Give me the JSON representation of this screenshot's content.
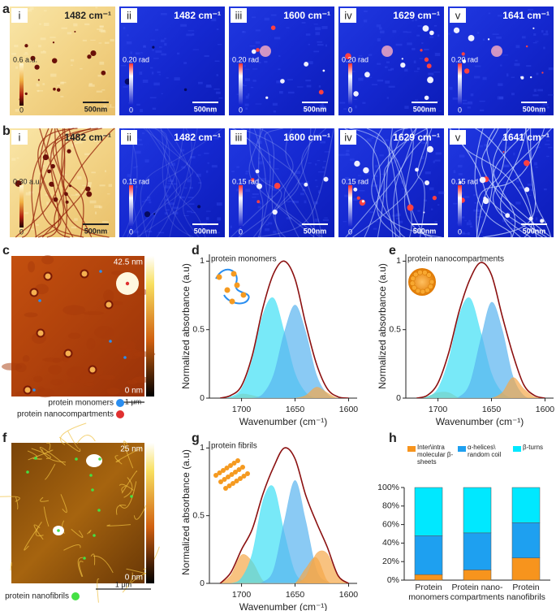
{
  "panel_letters": [
    "a",
    "b",
    "c",
    "d",
    "e",
    "f",
    "g",
    "h"
  ],
  "row_a": [
    {
      "numeral": "i",
      "wavenumber": "1482 cm⁻¹",
      "scale_max": "0.6 a.u.",
      "scale_min": "0",
      "scale_bar": "500nm"
    },
    {
      "numeral": "ii",
      "wavenumber": "1482 cm⁻¹",
      "scale_max": "0.20 rad",
      "scale_min": "0",
      "scale_bar": "500nm"
    },
    {
      "numeral": "iii",
      "wavenumber": "1600 cm⁻¹",
      "scale_max": "0.20 rad",
      "scale_min": "0",
      "scale_bar": "500nm"
    },
    {
      "numeral": "iv",
      "wavenumber": "1629 cm⁻¹",
      "scale_max": "0.20 rad",
      "scale_min": "0",
      "scale_bar": "500nm"
    },
    {
      "numeral": "v",
      "wavenumber": "1641 cm⁻¹",
      "scale_max": "0.20 rad",
      "scale_min": "0",
      "scale_bar": "500nm"
    }
  ],
  "row_b": [
    {
      "numeral": "i",
      "wavenumber": "1482 cm⁻¹",
      "scale_max": "0.30 a.u.",
      "scale_min": "0",
      "scale_bar": "500nm"
    },
    {
      "numeral": "ii",
      "wavenumber": "1482 cm⁻¹",
      "scale_max": "0.15 rad",
      "scale_min": "0",
      "scale_bar": "500nm"
    },
    {
      "numeral": "iii",
      "wavenumber": "1600 cm⁻¹",
      "scale_max": "0.15 rad",
      "scale_min": "0",
      "scale_bar": "500nm"
    },
    {
      "numeral": "iv",
      "wavenumber": "1629 cm⁻¹",
      "scale_max": "0.15 rad",
      "scale_min": "0",
      "scale_bar": "500nm"
    },
    {
      "numeral": "v",
      "wavenumber": "1641 cm⁻¹",
      "scale_max": "0.15 rad",
      "scale_min": "0",
      "scale_bar": "500nm"
    }
  ],
  "map_c": {
    "scale_max": "42.5 nm",
    "scale_min": "0 nm",
    "scale_bar": "1 μm",
    "legend": [
      {
        "label": "protein monomers",
        "color": "#2a8ef0"
      },
      {
        "label": "protein nanocompartments",
        "color": "#e03030"
      }
    ]
  },
  "map_f": {
    "scale_max": "25 nm",
    "scale_min": "0 nm",
    "scale_bar": "1 μm",
    "legend": [
      {
        "label": "protein nanofibrils",
        "color": "#44e044"
      }
    ]
  },
  "chart_data": [
    {
      "type": "area",
      "annotation": "protein monomers",
      "xlabel": "Wavenumber (cm⁻¹)",
      "ylabel": "Normalized absorbance (a.u)",
      "x": [
        1720,
        1710,
        1700,
        1690,
        1680,
        1670,
        1660,
        1650,
        1640,
        1630,
        1620,
        1610,
        1600
      ],
      "xlim": [
        1730,
        1592
      ],
      "ylim": [
        0,
        1.05
      ],
      "xticks": [
        1700,
        1650,
        1600
      ],
      "yticks": [
        0,
        0.5,
        1
      ],
      "series": [
        {
          "color": "#f3b866",
          "filled": true,
          "values": [
            0,
            0,
            0.03,
            0.02,
            0,
            0,
            0,
            0,
            0,
            0,
            0,
            0,
            0
          ]
        },
        {
          "color": "#3fe0f5",
          "filled": true,
          "values": [
            0,
            0.01,
            0.07,
            0.28,
            0.61,
            0.73,
            0.48,
            0.18,
            0.04,
            0,
            0,
            0,
            0
          ]
        },
        {
          "color": "#58b4f0",
          "filled": true,
          "values": [
            0,
            0,
            0,
            0,
            0.03,
            0.17,
            0.48,
            0.68,
            0.48,
            0.17,
            0.03,
            0,
            0
          ]
        },
        {
          "color": "#f5a84a",
          "filled": true,
          "values": [
            0,
            0,
            0,
            0,
            0,
            0,
            0,
            0,
            0.02,
            0.08,
            0.04,
            0,
            0
          ]
        },
        {
          "color": "#8b1010",
          "filled": false,
          "values": [
            0,
            0.02,
            0.09,
            0.31,
            0.66,
            0.91,
            1.0,
            0.87,
            0.54,
            0.25,
            0.07,
            0.01,
            0
          ]
        }
      ]
    },
    {
      "type": "area",
      "annotation": "protein nanocompartments",
      "xlabel": "Wavenumber (cm⁻¹)",
      "ylabel": "Normalized absorbance (a.u)",
      "x": [
        1720,
        1710,
        1700,
        1690,
        1680,
        1670,
        1660,
        1650,
        1640,
        1630,
        1620,
        1610,
        1600
      ],
      "xlim": [
        1730,
        1592
      ],
      "ylim": [
        0,
        1.05
      ],
      "xticks": [
        1700,
        1650,
        1600
      ],
      "yticks": [
        0,
        0.5,
        1
      ],
      "series": [
        {
          "color": "#f3b866",
          "filled": true,
          "values": [
            0,
            0.01,
            0.04,
            0.04,
            0,
            0,
            0,
            0,
            0,
            0,
            0,
            0,
            0
          ]
        },
        {
          "color": "#3fe0f5",
          "filled": true,
          "values": [
            0,
            0.01,
            0.07,
            0.28,
            0.61,
            0.73,
            0.48,
            0.18,
            0.04,
            0,
            0,
            0,
            0
          ]
        },
        {
          "color": "#58b4f0",
          "filled": true,
          "values": [
            0,
            0,
            0,
            0,
            0.01,
            0.11,
            0.43,
            0.7,
            0.5,
            0.16,
            0.02,
            0,
            0
          ]
        },
        {
          "color": "#f5a84a",
          "filled": true,
          "values": [
            0,
            0,
            0,
            0,
            0,
            0,
            0,
            0,
            0.04,
            0.15,
            0.07,
            0.01,
            0
          ]
        },
        {
          "color": "#8b1010",
          "filled": false,
          "values": [
            0,
            0.02,
            0.11,
            0.33,
            0.64,
            0.87,
            0.99,
            0.9,
            0.6,
            0.32,
            0.1,
            0.02,
            0
          ]
        }
      ]
    },
    {
      "type": "area",
      "annotation": "protein fibrils",
      "xlabel": "Wavenumber (cm⁻¹)",
      "ylabel": "Normalized absorbance (a.u)",
      "x": [
        1720,
        1710,
        1700,
        1690,
        1680,
        1670,
        1660,
        1650,
        1640,
        1630,
        1620,
        1610,
        1600
      ],
      "xlim": [
        1730,
        1592
      ],
      "ylim": [
        0,
        1.05
      ],
      "xticks": [
        1700,
        1650,
        1600
      ],
      "yticks": [
        0,
        0.5,
        1
      ],
      "series": [
        {
          "color": "#f5a84a",
          "filled": true,
          "values": [
            0,
            0.06,
            0.21,
            0.16,
            0.02,
            0,
            0,
            0,
            0,
            0,
            0,
            0,
            0
          ]
        },
        {
          "color": "#3fe0f5",
          "filled": true,
          "values": [
            0,
            0,
            0.04,
            0.22,
            0.61,
            0.71,
            0.37,
            0.08,
            0.01,
            0,
            0,
            0,
            0
          ]
        },
        {
          "color": "#58b4f0",
          "filled": true,
          "values": [
            0,
            0,
            0,
            0,
            0.01,
            0.1,
            0.46,
            0.76,
            0.46,
            0.1,
            0.01,
            0,
            0
          ]
        },
        {
          "color": "#f5a84a",
          "filled": true,
          "values": [
            0,
            0,
            0,
            0,
            0,
            0,
            0,
            0,
            0.11,
            0.19,
            0.02,
            0,
            0
          ]
        },
        {
          "color": "#f5a84a",
          "filled": true,
          "values": [
            0,
            0,
            0,
            0,
            0,
            0,
            0,
            0,
            0.05,
            0.22,
            0.22,
            0.05,
            0
          ]
        },
        {
          "color": "#8b1010",
          "filled": false,
          "values": [
            0,
            0.08,
            0.25,
            0.4,
            0.66,
            0.86,
            1.0,
            0.92,
            0.65,
            0.45,
            0.27,
            0.06,
            0
          ]
        }
      ]
    },
    {
      "type": "stacked_bar",
      "categories": [
        "Protein monomers",
        "Protein nano-compartments",
        "Protein nanofibrils"
      ],
      "ylim": [
        0,
        100
      ],
      "yticks": [
        {
          "value": 0,
          "label": "0%"
        },
        {
          "value": 20,
          "label": "20%"
        },
        {
          "value": 40,
          "label": "40%"
        },
        {
          "value": 60,
          "label": "60%"
        },
        {
          "value": 80,
          "label": "80%"
        },
        {
          "value": 100,
          "label": "100%"
        }
      ],
      "series": [
        {
          "name": "Inter\\intra molecular β-sheets",
          "color": "#f7941d",
          "values": [
            6,
            11,
            24
          ]
        },
        {
          "name": "α-helices\\ random coil",
          "color": "#1ea0f0",
          "values": [
            42,
            40,
            38
          ]
        },
        {
          "name": "β-turns",
          "color": "#00e8ff",
          "values": [
            52,
            49,
            38
          ]
        }
      ]
    }
  ]
}
